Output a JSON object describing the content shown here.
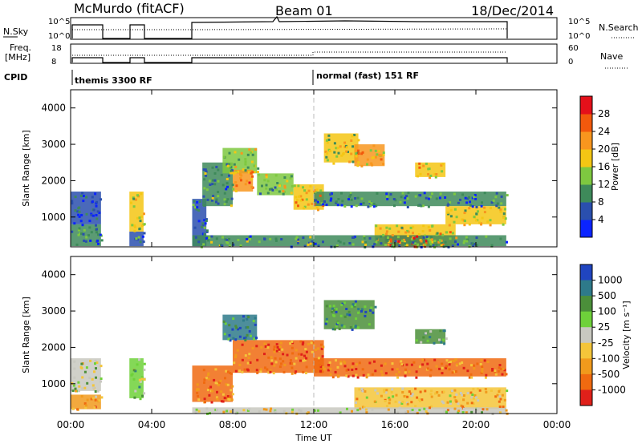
{
  "header": {
    "station": "McMurdo (fitACF)",
    "beam": "Beam 01",
    "date": "18/Dec/2014"
  },
  "status_panels": {
    "noise": {
      "left_label": "N.Sky",
      "right_label": "N.Search",
      "left_ticks": [
        "10^5",
        "10^0"
      ],
      "right_ticks": [
        "10^5",
        "10^0"
      ]
    },
    "freq": {
      "left_label_line1": "Freq.",
      "left_label_line2": "[MHz]",
      "right_label": "Nave",
      "left_ticks": [
        "18",
        "8"
      ],
      "right_ticks": [
        "60",
        "0"
      ]
    },
    "cpid": {
      "label": "CPID",
      "modes": [
        "themis 3300 RF",
        "normal (fast) 151 RF"
      ]
    }
  },
  "colors": {
    "power": [
      "#0b24ff",
      "#2a4fae",
      "#3e8a5a",
      "#7ec840",
      "#f4c614",
      "#f8961e",
      "#f2590c",
      "#e4101a"
    ],
    "velocity": [
      "#2045c0",
      "#2e7a8a",
      "#4b8f3a",
      "#6ed13a",
      "#c8c8c0",
      "#f4c53a",
      "#f19a1c",
      "#f06a10",
      "#e0201a"
    ]
  },
  "chart_data": [
    {
      "type": "heatmap",
      "name": "power",
      "xlabel": "",
      "ylabel": "Slant Range [km]",
      "x_range_hours": [
        0,
        24
      ],
      "y_range_km": [
        180,
        4500
      ],
      "y_ticks": [
        "1000",
        "2000",
        "3000",
        "4000"
      ],
      "colorbar": {
        "label": "Power [dB]",
        "range": [
          0,
          32
        ],
        "ticks": [
          "4",
          "8",
          "12",
          "16",
          "20",
          "24",
          "28"
        ]
      },
      "blocks": [
        {
          "t0": 0.0,
          "t1": 1.5,
          "r0": 200,
          "r1": 800,
          "level": 0.25
        },
        {
          "t0": 0.0,
          "t1": 1.5,
          "r0": 800,
          "r1": 1700,
          "level": 0.08
        },
        {
          "t0": 2.9,
          "t1": 3.6,
          "r0": 200,
          "r1": 600,
          "level": 0.2
        },
        {
          "t0": 2.9,
          "t1": 3.6,
          "r0": 600,
          "r1": 1700,
          "level": 0.5
        },
        {
          "t0": 6.0,
          "t1": 6.7,
          "r0": 200,
          "r1": 1500,
          "level": 0.15
        },
        {
          "t0": 6.5,
          "t1": 8.0,
          "r0": 1300,
          "r1": 2500,
          "level": 0.3
        },
        {
          "t0": 7.5,
          "t1": 9.2,
          "r0": 2200,
          "r1": 2900,
          "level": 0.45
        },
        {
          "t0": 8.0,
          "t1": 9.0,
          "r0": 1700,
          "r1": 2300,
          "level": 0.72
        },
        {
          "t0": 9.2,
          "t1": 11.0,
          "r0": 1600,
          "r1": 2200,
          "level": 0.45
        },
        {
          "t0": 11.0,
          "t1": 12.5,
          "r0": 1200,
          "r1": 1900,
          "level": 0.6
        },
        {
          "t0": 12.5,
          "t1": 14.2,
          "r0": 2500,
          "r1": 3300,
          "level": 0.5
        },
        {
          "t0": 14.0,
          "t1": 15.5,
          "r0": 2400,
          "r1": 3000,
          "level": 0.65
        },
        {
          "t0": 12.0,
          "t1": 21.5,
          "r0": 1300,
          "r1": 1700,
          "level": 0.22
        },
        {
          "t0": 15.0,
          "t1": 19.0,
          "r0": 200,
          "r1": 800,
          "level": 0.55
        },
        {
          "t0": 15.5,
          "t1": 17.5,
          "r0": 200,
          "r1": 500,
          "level": 0.9
        },
        {
          "t0": 17.0,
          "t1": 18.5,
          "r0": 2100,
          "r1": 2500,
          "level": 0.62
        },
        {
          "t0": 18.5,
          "t1": 21.5,
          "r0": 800,
          "r1": 1300,
          "level": 0.55
        },
        {
          "t0": 6.0,
          "t1": 21.5,
          "r0": 200,
          "r1": 500,
          "level": 0.28
        }
      ]
    },
    {
      "type": "heatmap",
      "name": "velocity",
      "xlabel": "Time UT",
      "ylabel": "Slant Range [km]",
      "x_ticks": [
        "00:00",
        "04:00",
        "08:00",
        "12:00",
        "16:00",
        "20:00",
        "00:00"
      ],
      "x_range_hours": [
        0,
        24
      ],
      "y_range_km": [
        180,
        4500
      ],
      "y_ticks": [
        "1000",
        "2000",
        "3000",
        "4000"
      ],
      "colorbar": {
        "label": "Velocity [m s⁻¹]",
        "ticks": [
          "1000",
          "500",
          "100",
          "25",
          "-25",
          "-100",
          "-500",
          "-1000"
        ]
      },
      "blocks": [
        {
          "t0": 0.0,
          "t1": 1.5,
          "r0": 300,
          "r1": 700,
          "level": 0.8
        },
        {
          "t0": 0.0,
          "t1": 1.5,
          "r0": 800,
          "r1": 1700,
          "level": 0.45
        },
        {
          "t0": 2.9,
          "t1": 3.6,
          "r0": 600,
          "r1": 1700,
          "level": 0.35
        },
        {
          "t0": 6.0,
          "t1": 8.0,
          "r0": 500,
          "r1": 1500,
          "level": 0.85
        },
        {
          "t0": 7.5,
          "t1": 9.2,
          "r0": 2200,
          "r1": 2900,
          "level": 0.15
        },
        {
          "t0": 8.0,
          "t1": 12.5,
          "r0": 1300,
          "r1": 2200,
          "level": 0.85
        },
        {
          "t0": 12.5,
          "t1": 15.0,
          "r0": 2500,
          "r1": 3300,
          "level": 0.2
        },
        {
          "t0": 12.0,
          "t1": 21.5,
          "r0": 1200,
          "r1": 1700,
          "level": 0.82
        },
        {
          "t0": 14.0,
          "t1": 21.5,
          "r0": 300,
          "r1": 900,
          "level": 0.65
        },
        {
          "t0": 17.0,
          "t1": 18.5,
          "r0": 2100,
          "r1": 2500,
          "level": 0.3
        },
        {
          "t0": 6.0,
          "t1": 21.5,
          "r0": 200,
          "r1": 350,
          "level": 0.55
        }
      ]
    }
  ]
}
